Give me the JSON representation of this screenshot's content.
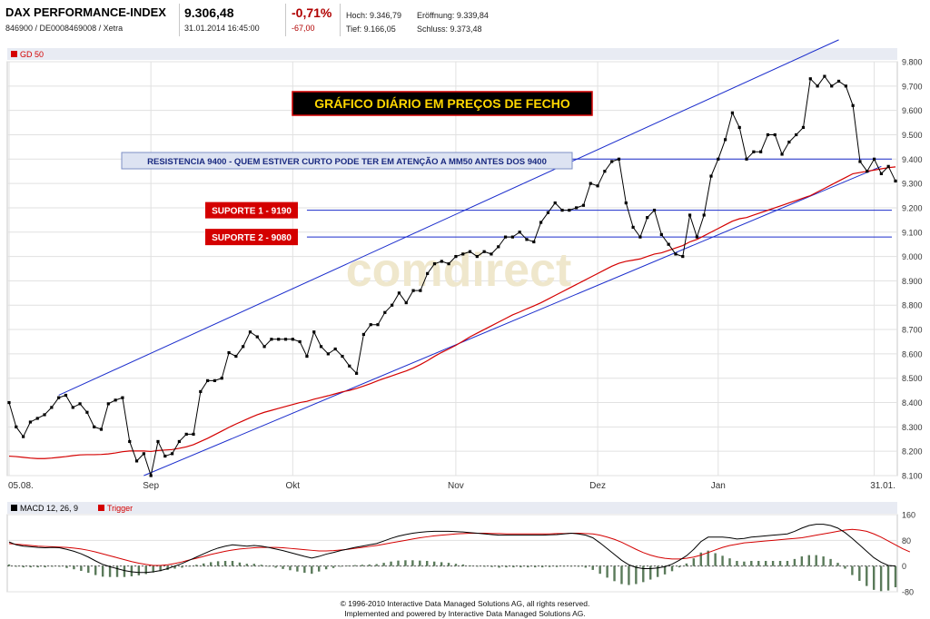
{
  "header": {
    "name": "DAX PERFORMANCE-INDEX",
    "ids": "846900 / DE0008469008 / Xetra",
    "price": "9.306,48",
    "datetime": "31.01.2014 16:45:00",
    "change_pct": "-0,71%",
    "change_abs": "-67,00",
    "high": "Hoch: 9.346,79",
    "open": "Eröffnung: 9.339,84",
    "low": "Tief: 9.166,05",
    "close": "Schluss: 9.373,48"
  },
  "footer": {
    "line1": "© 1996-2010 Interactive Data Managed Solutions AG, all rights reserved.",
    "line2": "Implemented and powered by Interactive Data Managed Solutions AG."
  },
  "colors": {
    "price": "#000000",
    "ma": "#d40000",
    "channel": "#1a2ccc",
    "macd_hist": "#5a7a5a",
    "banner_bg": "#000000",
    "banner_text": "#ffd700",
    "support_bg": "#d40000"
  },
  "chart_data": [
    {
      "type": "line",
      "legend": "GD 50",
      "legend_placement": "top-left",
      "grid": true,
      "ylim": [
        8100,
        9800
      ],
      "yticks": [
        8100,
        8200,
        8300,
        8400,
        8500,
        8600,
        8700,
        8800,
        8900,
        9000,
        9100,
        9200,
        9300,
        9400,
        9500,
        9600,
        9700,
        9800
      ],
      "ytick_labels": [
        "8.100",
        "8.200",
        "8.300",
        "8.400",
        "8.500",
        "8.600",
        "8.700",
        "8.800",
        "8.900",
        "9.000",
        "9.100",
        "9.200",
        "9.300",
        "9.400",
        "9.500",
        "9.600",
        "9.700",
        "9.800"
      ],
      "xtick_labels": [
        {
          "label": "05.08.",
          "idx": 0
        },
        {
          "label": "Sep",
          "idx": 20
        },
        {
          "label": "Okt",
          "idx": 40
        },
        {
          "label": "Nov",
          "idx": 63
        },
        {
          "label": "Dez",
          "idx": 83
        },
        {
          "label": "Jan",
          "idx": 100
        },
        {
          "label": "31.01.",
          "idx": 122
        }
      ],
      "price_series": [
        8400,
        8300,
        8260,
        8320,
        8335,
        8350,
        8380,
        8420,
        8430,
        8380,
        8395,
        8360,
        8300,
        8290,
        8395,
        8410,
        8420,
        8240,
        8160,
        8190,
        8100,
        8240,
        8180,
        8190,
        8240,
        8270,
        8270,
        8445,
        8490,
        8490,
        8500,
        8605,
        8590,
        8630,
        8690,
        8670,
        8630,
        8660,
        8660,
        8660,
        8660,
        8650,
        8590,
        8690,
        8630,
        8600,
        8620,
        8590,
        8550,
        8520,
        8680,
        8720,
        8720,
        8770,
        8800,
        8850,
        8810,
        8860,
        8860,
        8930,
        8970,
        8980,
        8970,
        9000,
        9010,
        9020,
        9000,
        9020,
        9010,
        9040,
        9080,
        9080,
        9100,
        9070,
        9060,
        9140,
        9180,
        9220,
        9190,
        9190,
        9200,
        9210,
        9300,
        9290,
        9350,
        9390,
        9400,
        9220,
        9120,
        9080,
        9160,
        9190,
        9090,
        9050,
        9010,
        9000,
        9170,
        9080,
        9170,
        9330,
        9400,
        9480,
        9590,
        9530,
        9400,
        9430,
        9430,
        9500,
        9500,
        9420,
        9470,
        9500,
        9530,
        9730,
        9700,
        9740,
        9700,
        9720,
        9700,
        9620,
        9390,
        9350,
        9400,
        9340,
        9370,
        9310
      ],
      "ma_series": [
        8180,
        8178,
        8175,
        8172,
        8170,
        8170,
        8172,
        8175,
        8178,
        8182,
        8185,
        8186,
        8186,
        8187,
        8189,
        8193,
        8198,
        8201,
        8201,
        8201,
        8199,
        8203,
        8205,
        8207,
        8212,
        8218,
        8227,
        8240,
        8253,
        8268,
        8283,
        8298,
        8312,
        8325,
        8338,
        8350,
        8360,
        8368,
        8376,
        8384,
        8392,
        8400,
        8405,
        8414,
        8421,
        8428,
        8436,
        8444,
        8450,
        8458,
        8468,
        8478,
        8490,
        8500,
        8510,
        8520,
        8530,
        8542,
        8556,
        8572,
        8590,
        8606,
        8620,
        8635,
        8652,
        8670,
        8685,
        8700,
        8715,
        8730,
        8745,
        8760,
        8772,
        8785,
        8797,
        8810,
        8825,
        8840,
        8855,
        8870,
        8885,
        8900,
        8915,
        8930,
        8945,
        8960,
        8972,
        8980,
        8985,
        8990,
        9000,
        9010,
        9015,
        9025,
        9035,
        9045,
        9060,
        9070,
        9085,
        9100,
        9115,
        9130,
        9145,
        9155,
        9160,
        9170,
        9180,
        9190,
        9200,
        9210,
        9220,
        9230,
        9240,
        9250,
        9265,
        9280,
        9295,
        9310,
        9325,
        9340,
        9345,
        9350,
        9355,
        9360,
        9365,
        9368
      ],
      "channel_upper": [
        [
          7,
          8430
        ],
        [
          117,
          9890
        ]
      ],
      "channel_lower": [
        [
          19,
          8100
        ],
        [
          123,
          9370
        ]
      ],
      "hlines": [
        {
          "from": 73,
          "value": 9400,
          "label_idx": "resistance"
        },
        {
          "from": 42,
          "value": 9190,
          "label_idx": "s1"
        },
        {
          "from": 42,
          "value": 9080,
          "label_idx": "s2"
        }
      ],
      "annotations": {
        "banner": "GRÁFICO DIÁRIO EM PREÇOS DE FECHO",
        "resistance": "RESISTENCIA 9400 - QUEM ESTIVER CURTO PODE TER EM ATENÇÃO A MM50 ANTES DOS 9400",
        "support1": "SUPORTE 1 - 9190",
        "support2": "SUPORTE 2 - 9080"
      },
      "watermark": "comdirect"
    },
    {
      "type": "line",
      "legend_macd": "MACD 12, 26, 9",
      "legend_trigger": "Trigger",
      "legend_placement": "top-left",
      "ylim": [
        -80,
        160
      ],
      "yticks": [
        -80,
        0,
        80,
        160
      ],
      "ytick_labels": [
        "-80",
        "0",
        "80",
        "160"
      ],
      "macd": [
        75,
        66,
        62,
        60,
        58,
        57,
        58,
        57,
        52,
        46,
        38,
        28,
        16,
        5,
        -2,
        -8,
        -14,
        -18,
        -20,
        -20,
        -18,
        -14,
        -8,
        0,
        8,
        18,
        28,
        38,
        48,
        56,
        62,
        66,
        64,
        62,
        64,
        62,
        58,
        53,
        48,
        42,
        36,
        30,
        25,
        30,
        37,
        42,
        48,
        53,
        58,
        62,
        66,
        70,
        78,
        86,
        93,
        98,
        102,
        105,
        107,
        108,
        108,
        108,
        107,
        106,
        104,
        102,
        100,
        98,
        96,
        96,
        96,
        96,
        96,
        96,
        96,
        97,
        98,
        100,
        102,
        100,
        96,
        88,
        72,
        54,
        36,
        18,
        4,
        -4,
        -8,
        -8,
        -6,
        -2,
        6,
        18,
        32,
        52,
        76,
        90,
        90,
        90,
        88,
        84,
        86,
        90,
        92,
        94,
        96,
        98,
        100,
        108,
        118,
        126,
        130,
        130,
        126,
        118,
        104,
        86,
        66,
        46,
        26,
        12,
        2,
        0
      ],
      "trigger": [
        70,
        68,
        66,
        64,
        62,
        61,
        60,
        59,
        58,
        56,
        53,
        49,
        44,
        38,
        32,
        26,
        20,
        14,
        9,
        5,
        2,
        2,
        4,
        8,
        13,
        19,
        24,
        30,
        36,
        41,
        46,
        50,
        53,
        55,
        57,
        58,
        58,
        58,
        57,
        55,
        53,
        51,
        49,
        47,
        47,
        48,
        50,
        52,
        55,
        58,
        61,
        64,
        68,
        72,
        76,
        80,
        84,
        88,
        91,
        94,
        96,
        98,
        100,
        101,
        102,
        102,
        102,
        101,
        101,
        100,
        100,
        100,
        100,
        100,
        100,
        100,
        101,
        101,
        102,
        102,
        101,
        100,
        96,
        90,
        83,
        74,
        63,
        52,
        42,
        34,
        28,
        24,
        22,
        22,
        24,
        28,
        34,
        42,
        50,
        58,
        64,
        68,
        72,
        74,
        76,
        78,
        80,
        82,
        84,
        86,
        88,
        92,
        96,
        100,
        104,
        108,
        112,
        114,
        112,
        108,
        100,
        90,
        78,
        66,
        54,
        44
      ]
    }
  ]
}
